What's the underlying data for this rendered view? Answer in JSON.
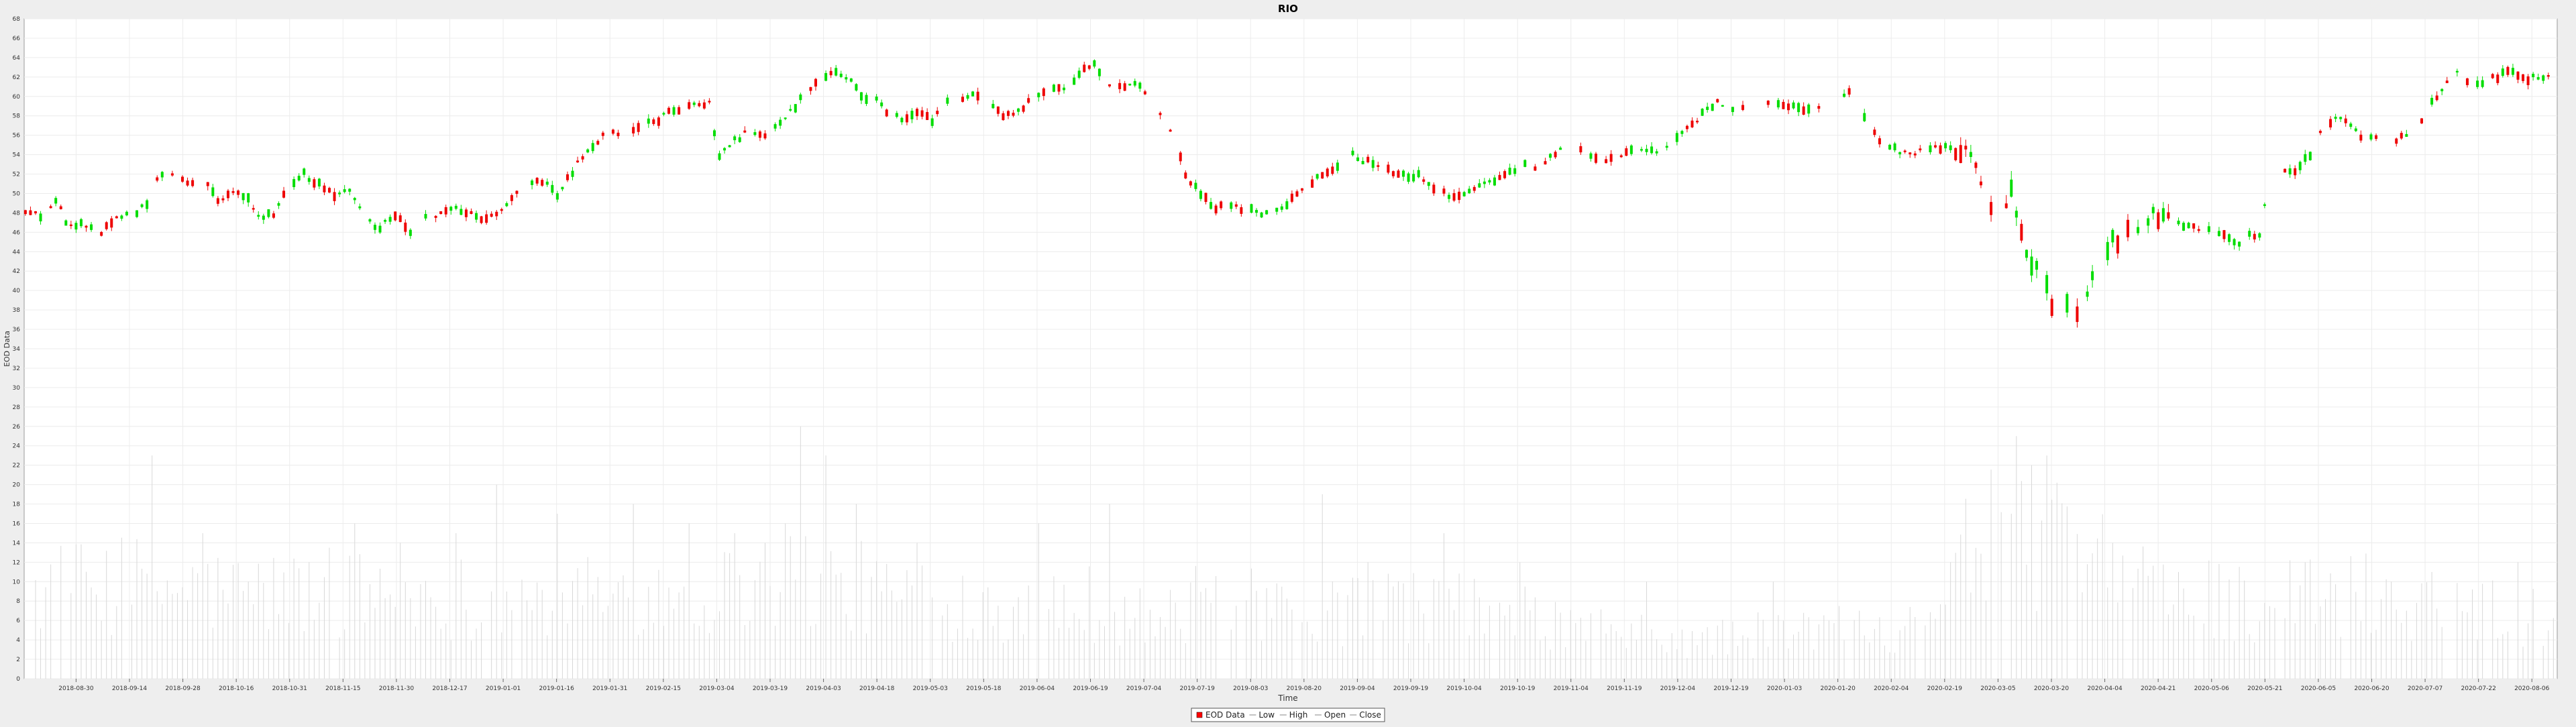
{
  "chart_data": {
    "type": "candlestick",
    "title": "RIO",
    "xlabel": "Time",
    "ylabel": "EOD Data",
    "ylim": [
      0,
      68
    ],
    "y_ticks": [
      0,
      2,
      4,
      6,
      8,
      10,
      12,
      14,
      16,
      18,
      20,
      22,
      24,
      26,
      28,
      30,
      32,
      34,
      36,
      38,
      40,
      42,
      44,
      46,
      48,
      50,
      52,
      54,
      56,
      58,
      60,
      62,
      64,
      66,
      68
    ],
    "x_tick_labels": [
      "2018-08-30",
      "2018-09-14",
      "2018-09-28",
      "2018-10-16",
      "2018-10-31",
      "2018-11-15",
      "2018-11-30",
      "2018-12-17",
      "2019-01-01",
      "2019-01-16",
      "2019-01-31",
      "2019-02-15",
      "2019-03-04",
      "2019-03-19",
      "2019-04-03",
      "2019-04-18",
      "2019-05-03",
      "2019-05-18",
      "2019-06-04",
      "2019-06-19",
      "2019-07-04",
      "2019-07-19",
      "2019-08-03",
      "2019-08-20",
      "2019-09-04",
      "2019-09-19",
      "2019-10-04",
      "2019-10-19",
      "2019-11-04",
      "2019-11-19",
      "2019-12-04",
      "2019-12-19",
      "2020-01-03",
      "2020-01-20",
      "2020-02-04",
      "2020-02-19",
      "2020-03-05",
      "2020-03-20",
      "2020-04-04",
      "2020-04-21",
      "2020-05-06",
      "2020-05-21",
      "2020-06-05",
      "2020-06-20",
      "2020-07-07",
      "2020-07-22",
      "2020-08-06"
    ],
    "grid": true,
    "legend": {
      "placement": "bottom-center",
      "items": [
        {
          "name": "EOD Data",
          "symbol": "box",
          "color": "#ff0000"
        },
        {
          "name": "Low",
          "symbol": "line",
          "color": "#888888"
        },
        {
          "name": "High",
          "symbol": "line",
          "color": "#888888"
        },
        {
          "name": "Open",
          "symbol": "line",
          "color": "#888888"
        },
        {
          "name": "Close",
          "symbol": "line",
          "color": "#888888"
        }
      ]
    },
    "colors": {
      "up": "#00dd00",
      "down": "#ee0000",
      "volume": "#d8d8d8",
      "grid": "#ececec",
      "plot_bg": "#ffffff"
    },
    "price_anchors": [
      [
        0,
        48.3
      ],
      [
        8,
        47.6
      ],
      [
        12,
        49.5
      ],
      [
        16,
        47.0
      ],
      [
        26,
        46.8
      ],
      [
        30,
        46.0
      ],
      [
        36,
        47.5
      ],
      [
        42,
        47.8
      ],
      [
        48,
        49.0
      ],
      [
        52,
        51.5
      ],
      [
        58,
        52.0
      ],
      [
        64,
        51.2
      ],
      [
        70,
        51.6
      ],
      [
        76,
        49.5
      ],
      [
        82,
        50.0
      ],
      [
        88,
        49.8
      ],
      [
        92,
        47.5
      ],
      [
        98,
        48.0
      ],
      [
        104,
        51.0
      ],
      [
        110,
        52.0
      ],
      [
        116,
        51.0
      ],
      [
        122,
        49.8
      ],
      [
        126,
        50.5
      ],
      [
        130,
        49.6
      ],
      [
        136,
        47.0
      ],
      [
        140,
        46.5
      ],
      [
        146,
        47.8
      ],
      [
        152,
        46.2
      ],
      [
        158,
        47.5
      ],
      [
        164,
        48.0
      ],
      [
        170,
        48.3
      ],
      [
        176,
        47.8
      ],
      [
        182,
        47.4
      ],
      [
        188,
        48.5
      ],
      [
        196,
        50.5
      ],
      [
        204,
        51.2
      ],
      [
        210,
        50.0
      ],
      [
        218,
        53.0
      ],
      [
        224,
        55.0
      ],
      [
        230,
        56.4
      ],
      [
        238,
        56.2
      ],
      [
        244,
        57.2
      ],
      [
        250,
        57.6
      ],
      [
        256,
        58.6
      ],
      [
        262,
        59.0
      ],
      [
        270,
        59.2
      ],
      [
        274,
        53.8
      ],
      [
        280,
        55.5
      ],
      [
        286,
        56.4
      ],
      [
        292,
        56.2
      ],
      [
        298,
        57.5
      ],
      [
        304,
        59.0
      ],
      [
        310,
        61.0
      ],
      [
        316,
        62.3
      ],
      [
        320,
        62.8
      ],
      [
        326,
        61.5
      ],
      [
        330,
        60.0
      ],
      [
        336,
        59.5
      ],
      [
        340,
        58.5
      ],
      [
        346,
        57.8
      ],
      [
        352,
        58.3
      ],
      [
        358,
        57.4
      ],
      [
        364,
        59.6
      ],
      [
        370,
        59.8
      ],
      [
        374,
        60.4
      ],
      [
        380,
        59.0
      ],
      [
        386,
        58.2
      ],
      [
        392,
        58.5
      ],
      [
        398,
        59.8
      ],
      [
        404,
        60.8
      ],
      [
        410,
        60.5
      ],
      [
        416,
        62.3
      ],
      [
        422,
        63.5
      ],
      [
        426,
        61.2
      ],
      [
        432,
        60.9
      ],
      [
        438,
        61.2
      ],
      [
        442,
        60.6
      ],
      [
        446,
        58.3
      ],
      [
        450,
        57.8
      ],
      [
        454,
        55.0
      ],
      [
        458,
        52.0
      ],
      [
        464,
        50.0
      ],
      [
        470,
        48.6
      ],
      [
        476,
        48.5
      ],
      [
        482,
        48.5
      ],
      [
        488,
        47.8
      ],
      [
        494,
        48.2
      ],
      [
        500,
        49.3
      ],
      [
        506,
        51.0
      ],
      [
        512,
        51.8
      ],
      [
        518,
        53.0
      ],
      [
        522,
        54.5
      ],
      [
        526,
        53.6
      ],
      [
        532,
        53.2
      ],
      [
        538,
        52.4
      ],
      [
        544,
        51.8
      ],
      [
        550,
        51.9
      ],
      [
        556,
        50.5
      ],
      [
        562,
        49.8
      ],
      [
        568,
        50.0
      ],
      [
        574,
        50.6
      ],
      [
        580,
        51.5
      ],
      [
        586,
        52.3
      ],
      [
        592,
        53.0
      ],
      [
        598,
        52.8
      ],
      [
        604,
        54.0
      ],
      [
        610,
        55.6
      ],
      [
        616,
        54.2
      ],
      [
        622,
        53.5
      ],
      [
        628,
        53.6
      ],
      [
        634,
        54.4
      ],
      [
        640,
        54.6
      ],
      [
        646,
        54.4
      ],
      [
        652,
        55.8
      ],
      [
        658,
        57.3
      ],
      [
        664,
        58.5
      ],
      [
        668,
        59.3
      ],
      [
        674,
        58.9
      ],
      [
        680,
        59.2
      ],
      [
        686,
        59.6
      ],
      [
        692,
        59.4
      ],
      [
        698,
        58.9
      ],
      [
        704,
        58.5
      ],
      [
        710,
        58.8
      ],
      [
        716,
        59.3
      ],
      [
        720,
        60.5
      ],
      [
        724,
        58.6
      ],
      [
        728,
        57.5
      ],
      [
        732,
        55.3
      ],
      [
        738,
        54.6
      ],
      [
        744,
        54.0
      ],
      [
        750,
        54.6
      ],
      [
        756,
        54.8
      ],
      [
        762,
        54.4
      ],
      [
        768,
        54.5
      ],
      [
        772,
        50.5
      ],
      [
        776,
        48.0
      ],
      [
        780,
        47.2
      ],
      [
        784,
        50.0
      ],
      [
        788,
        45.5
      ],
      [
        792,
        43.0
      ],
      [
        796,
        42.0
      ],
      [
        800,
        38.2
      ],
      [
        804,
        40.0
      ],
      [
        808,
        37.5
      ],
      [
        812,
        36.3
      ],
      [
        816,
        41.8
      ],
      [
        820,
        43.5
      ],
      [
        824,
        45.0
      ],
      [
        828,
        45.3
      ],
      [
        832,
        46.4
      ],
      [
        836,
        46.8
      ],
      [
        840,
        47.8
      ],
      [
        846,
        47.3
      ],
      [
        852,
        46.8
      ],
      [
        858,
        46.5
      ],
      [
        864,
        46.2
      ],
      [
        870,
        45.3
      ],
      [
        874,
        45.0
      ],
      [
        878,
        45.6
      ],
      [
        882,
        45.8
      ],
      [
        886,
        51.5
      ],
      [
        890,
        52.2
      ],
      [
        894,
        52.0
      ],
      [
        898,
        53.0
      ],
      [
        902,
        54.0
      ],
      [
        906,
        56.2
      ],
      [
        910,
        57.4
      ],
      [
        914,
        57.6
      ],
      [
        918,
        57.0
      ],
      [
        922,
        55.8
      ],
      [
        926,
        55.6
      ],
      [
        930,
        56.2
      ],
      [
        934,
        55.4
      ],
      [
        938,
        55.8
      ],
      [
        944,
        56.8
      ],
      [
        948,
        58.5
      ],
      [
        952,
        60.0
      ],
      [
        956,
        61.4
      ],
      [
        960,
        62.5
      ],
      [
        966,
        61.2
      ],
      [
        970,
        61.6
      ],
      [
        976,
        62.0
      ],
      [
        980,
        62.8
      ],
      [
        986,
        61.8
      ],
      [
        990,
        62.0
      ],
      [
        994,
        61.8
      ],
      [
        998,
        62.6
      ]
    ],
    "volume_anchors": [
      [
        0,
        9
      ],
      [
        40,
        10
      ],
      [
        80,
        9
      ],
      [
        120,
        9
      ],
      [
        160,
        9
      ],
      [
        200,
        8
      ],
      [
        240,
        9
      ],
      [
        270,
        9
      ],
      [
        300,
        11
      ],
      [
        340,
        9
      ],
      [
        380,
        8
      ],
      [
        420,
        8
      ],
      [
        450,
        6
      ],
      [
        470,
        9
      ],
      [
        500,
        6
      ],
      [
        540,
        8
      ],
      [
        580,
        7
      ],
      [
        620,
        5
      ],
      [
        660,
        4
      ],
      [
        700,
        5
      ],
      [
        740,
        6
      ],
      [
        780,
        16
      ],
      [
        800,
        15
      ],
      [
        830,
        10
      ],
      [
        880,
        8
      ],
      [
        920,
        9
      ],
      [
        960,
        8
      ],
      [
        998,
        7
      ]
    ],
    "volume_spikes": [
      [
        50,
        23
      ],
      [
        70,
        15
      ],
      [
        130,
        16
      ],
      [
        148,
        14
      ],
      [
        170,
        15
      ],
      [
        186,
        20
      ],
      [
        210,
        17
      ],
      [
        240,
        18
      ],
      [
        262,
        16
      ],
      [
        280,
        15
      ],
      [
        300,
        16
      ],
      [
        306,
        26
      ],
      [
        317,
        23
      ],
      [
        328,
        18
      ],
      [
        352,
        14
      ],
      [
        400,
        16
      ],
      [
        429,
        18
      ],
      [
        480,
        13
      ],
      [
        512,
        19
      ],
      [
        530,
        12
      ],
      [
        560,
        15
      ],
      [
        590,
        12
      ],
      [
        640,
        10
      ],
      [
        690,
        10
      ],
      [
        760,
        12
      ],
      [
        787,
        25
      ],
      [
        792,
        22
      ],
      [
        798,
        23
      ],
      [
        808,
        16
      ],
      [
        825,
        14
      ],
      [
        850,
        11
      ],
      [
        900,
        12
      ],
      [
        950,
        11
      ],
      [
        984,
        12
      ]
    ]
  }
}
